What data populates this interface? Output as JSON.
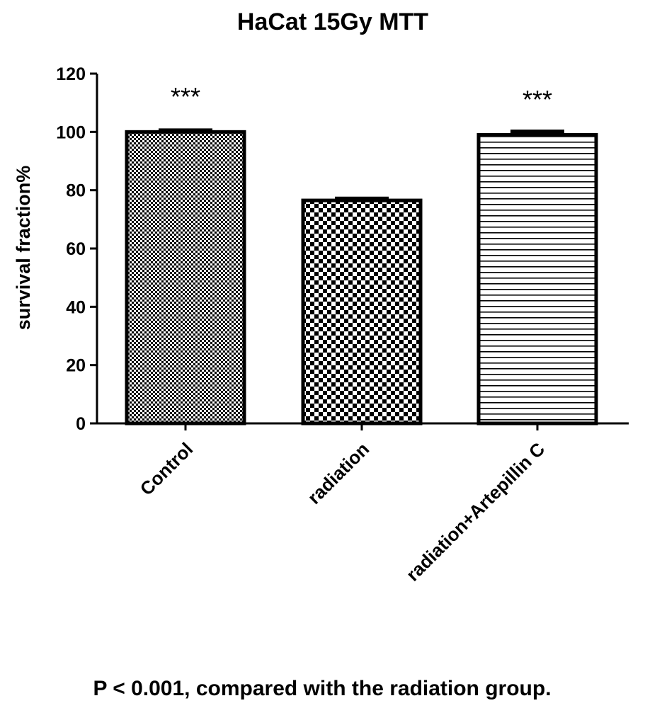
{
  "chart_data": {
    "type": "bar",
    "title": "HaCat 15Gy MTT",
    "ylabel": "survival fraction%",
    "xlabel": "",
    "ylim": [
      0,
      120
    ],
    "yticks": [
      0,
      20,
      40,
      60,
      80,
      100,
      120
    ],
    "categories": [
      "Control",
      "radiation",
      "radiation+Artepillin C"
    ],
    "values": [
      100,
      76.5,
      99
    ],
    "errors": [
      0.6,
      0.7,
      1.2
    ],
    "annotations": [
      "***",
      "",
      "***"
    ],
    "patterns": [
      "fine-checker",
      "checker",
      "horizontal-lines"
    ],
    "grid": false
  },
  "footnote": "P < 0.001, compared with the radiation group."
}
